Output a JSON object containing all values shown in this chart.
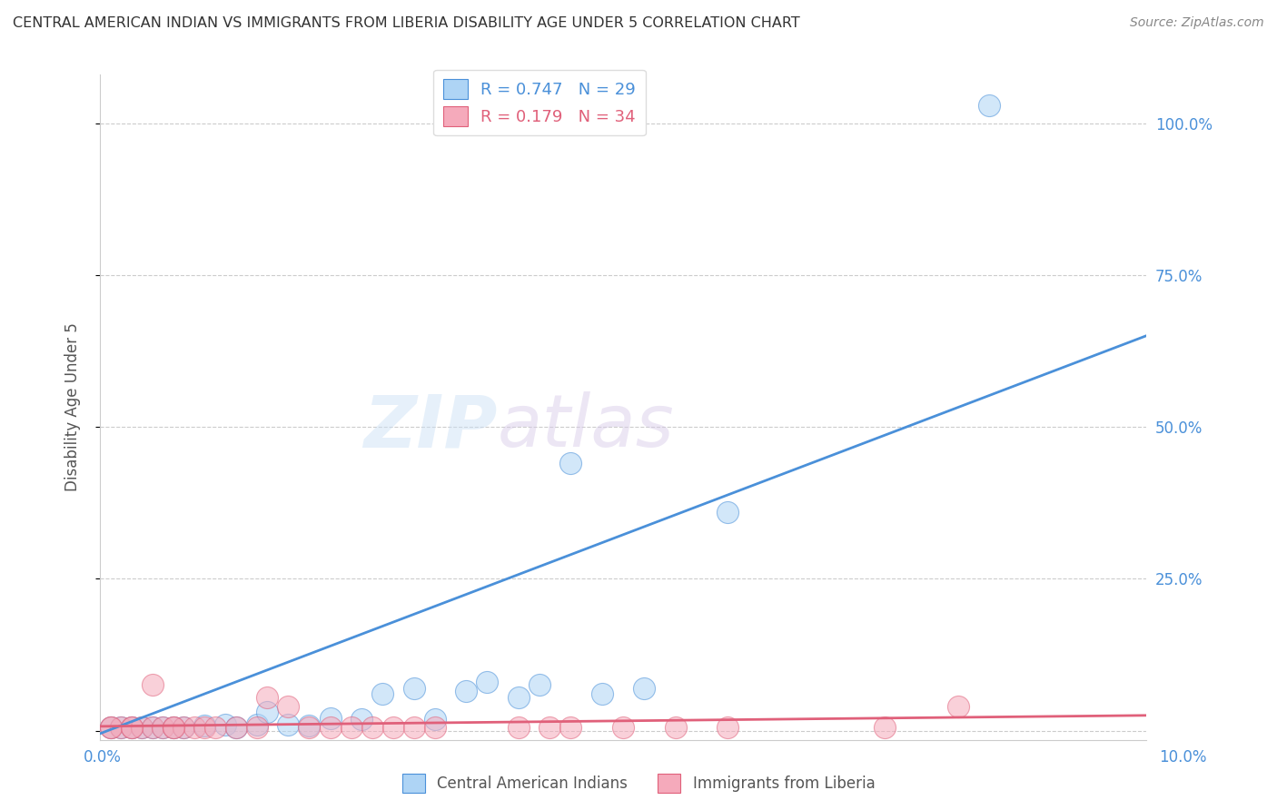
{
  "title": "CENTRAL AMERICAN INDIAN VS IMMIGRANTS FROM LIBERIA DISABILITY AGE UNDER 5 CORRELATION CHART",
  "source": "Source: ZipAtlas.com",
  "ylabel": "Disability Age Under 5",
  "y_ticks": [
    0.0,
    0.25,
    0.5,
    0.75,
    1.0
  ],
  "y_tick_labels": [
    "",
    "25.0%",
    "50.0%",
    "75.0%",
    "100.0%"
  ],
  "x_lim": [
    0.0,
    0.1
  ],
  "y_lim": [
    -0.015,
    1.08
  ],
  "blue_R": 0.747,
  "blue_N": 29,
  "pink_R": 0.179,
  "pink_N": 34,
  "blue_color": "#aed4f5",
  "blue_line_color": "#4a90d9",
  "pink_color": "#f5aabb",
  "pink_line_color": "#e0607a",
  "blue_label": "Central American Indians",
  "pink_label": "Immigrants from Liberia",
  "blue_scatter_x": [
    0.001,
    0.002,
    0.003,
    0.004,
    0.005,
    0.006,
    0.007,
    0.008,
    0.01,
    0.012,
    0.013,
    0.015,
    0.016,
    0.018,
    0.02,
    0.022,
    0.025,
    0.027,
    0.03,
    0.032,
    0.035,
    0.037,
    0.04,
    0.042,
    0.045,
    0.048,
    0.052,
    0.06,
    0.085
  ],
  "blue_scatter_y": [
    0.005,
    0.005,
    0.005,
    0.005,
    0.005,
    0.005,
    0.005,
    0.005,
    0.008,
    0.01,
    0.005,
    0.01,
    0.03,
    0.01,
    0.008,
    0.02,
    0.018,
    0.06,
    0.07,
    0.018,
    0.065,
    0.08,
    0.055,
    0.075,
    0.44,
    0.06,
    0.07,
    0.36,
    1.03
  ],
  "pink_scatter_x": [
    0.001,
    0.002,
    0.003,
    0.004,
    0.005,
    0.006,
    0.007,
    0.008,
    0.009,
    0.01,
    0.011,
    0.013,
    0.015,
    0.016,
    0.018,
    0.02,
    0.022,
    0.024,
    0.026,
    0.028,
    0.03,
    0.032,
    0.04,
    0.043,
    0.045,
    0.05,
    0.055,
    0.06,
    0.075,
    0.082,
    0.001,
    0.003,
    0.005,
    0.007
  ],
  "pink_scatter_y": [
    0.005,
    0.005,
    0.005,
    0.005,
    0.005,
    0.005,
    0.005,
    0.005,
    0.005,
    0.005,
    0.005,
    0.005,
    0.005,
    0.055,
    0.04,
    0.005,
    0.005,
    0.005,
    0.005,
    0.005,
    0.005,
    0.005,
    0.005,
    0.005,
    0.005,
    0.005,
    0.005,
    0.005,
    0.005,
    0.04,
    0.005,
    0.005,
    0.075,
    0.005
  ],
  "blue_line_x": [
    0.0,
    0.1
  ],
  "blue_line_y": [
    -0.005,
    0.65
  ],
  "pink_line_x": [
    0.0,
    0.1
  ],
  "pink_line_y": [
    0.007,
    0.025
  ],
  "watermark_zip": "ZIP",
  "watermark_atlas": "atlas",
  "background_color": "#ffffff",
  "grid_color": "#cccccc",
  "title_color": "#333333",
  "axis_label_color": "#4a90d9",
  "right_axis_color": "#4a90d9"
}
